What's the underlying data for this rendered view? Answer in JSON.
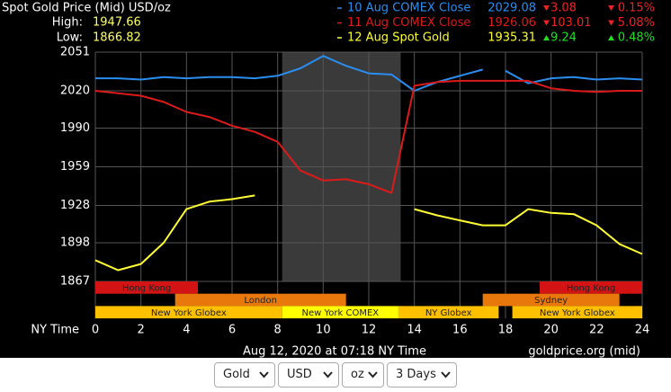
{
  "chart_data": {
    "type": "line",
    "title": "Spot Gold Price (Mid) USD/oz",
    "high_label": "High:",
    "high": "1947.66",
    "low_label": "Low:",
    "low": "1866.82",
    "x_axis_label": "NY Time",
    "x": [
      0,
      1,
      2,
      3,
      4,
      5,
      6,
      7,
      8,
      9,
      10,
      11,
      12,
      13,
      14,
      15,
      16,
      17,
      17.5,
      18,
      19,
      20,
      21,
      22,
      23,
      24
    ],
    "xlim": [
      0,
      24
    ],
    "xticks": [
      0,
      2,
      4,
      6,
      8,
      10,
      12,
      14,
      16,
      18,
      20,
      22,
      24
    ],
    "ylim": [
      1867,
      2051
    ],
    "yticks": [
      1867,
      1898,
      1928,
      1959,
      1990,
      2020,
      2051
    ],
    "grid": true,
    "shaded_range": [
      8.2,
      13.4
    ],
    "series": [
      {
        "name": "10 Aug COMEX Close",
        "color": "#2a8ef0",
        "price": "2029.08",
        "change": "3.08",
        "change_pct": "0.15%",
        "direction": "down",
        "values": [
          2030,
          2030,
          2029,
          2031,
          2030,
          2031,
          2031,
          2030,
          2032,
          2038,
          2048,
          2040,
          2034,
          2033,
          2020,
          2027,
          2032,
          2037,
          null,
          2036,
          2026,
          2030,
          2031,
          2029,
          2030,
          2029
        ]
      },
      {
        "name": "11 Aug COMEX Close",
        "color": "#dd1a1a",
        "price": "1926.06",
        "change": "103.01",
        "change_pct": "5.08%",
        "direction": "down",
        "values": [
          2020,
          2018,
          2016,
          2011,
          2003,
          1999,
          1992,
          1987,
          1979,
          1956,
          1948,
          1949,
          1945,
          1938,
          2024,
          2027,
          2028,
          2028,
          2028,
          2028,
          2028,
          2022,
          2020,
          2019,
          2020,
          2020
        ]
      },
      {
        "name": "12 Aug Spot Gold",
        "color": "#ffff33",
        "price": "1935.31",
        "change": "9.24",
        "change_pct": "0.48%",
        "direction": "up",
        "values": [
          1884,
          1876,
          1881,
          1898,
          1925,
          1931,
          1933,
          1936,
          null,
          null,
          null,
          null,
          null,
          null,
          1925,
          1920,
          1916,
          1912,
          1912,
          1912,
          1925,
          1922,
          1921,
          1912,
          1897,
          1889
        ]
      }
    ],
    "sessions": [
      {
        "label": "Hong Kong",
        "start": 0,
        "end": 4.5,
        "row": 0,
        "color": "#d41414"
      },
      {
        "label": "Hong Kong",
        "start": 19.5,
        "end": 24,
        "row": 0,
        "color": "#d41414"
      },
      {
        "label": "London",
        "start": 3.5,
        "end": 11,
        "row": 1,
        "color": "#e8780c"
      },
      {
        "label": "Sydney",
        "start": 17,
        "end": 23,
        "row": 1,
        "color": "#e8780c"
      },
      {
        "label": "New York Globex",
        "start": 0,
        "end": 8.2,
        "row": 2,
        "color": "#ffc000"
      },
      {
        "label": "New York COMEX",
        "start": 8.2,
        "end": 13.3,
        "row": 2,
        "color": "#ffff00"
      },
      {
        "label": "NY Globex",
        "start": 13.3,
        "end": 17.7,
        "row": 2,
        "color": "#ffc000"
      },
      {
        "label": "New York Globex",
        "start": 18.3,
        "end": 24,
        "row": 2,
        "color": "#ffc000"
      }
    ],
    "timestamp": "Aug 12, 2020 at 07:18 NY Time",
    "source": "goldprice.org (mid)"
  },
  "controls": {
    "metal": "Gold",
    "currency": "USD",
    "unit": "oz",
    "range": "3 Days"
  }
}
